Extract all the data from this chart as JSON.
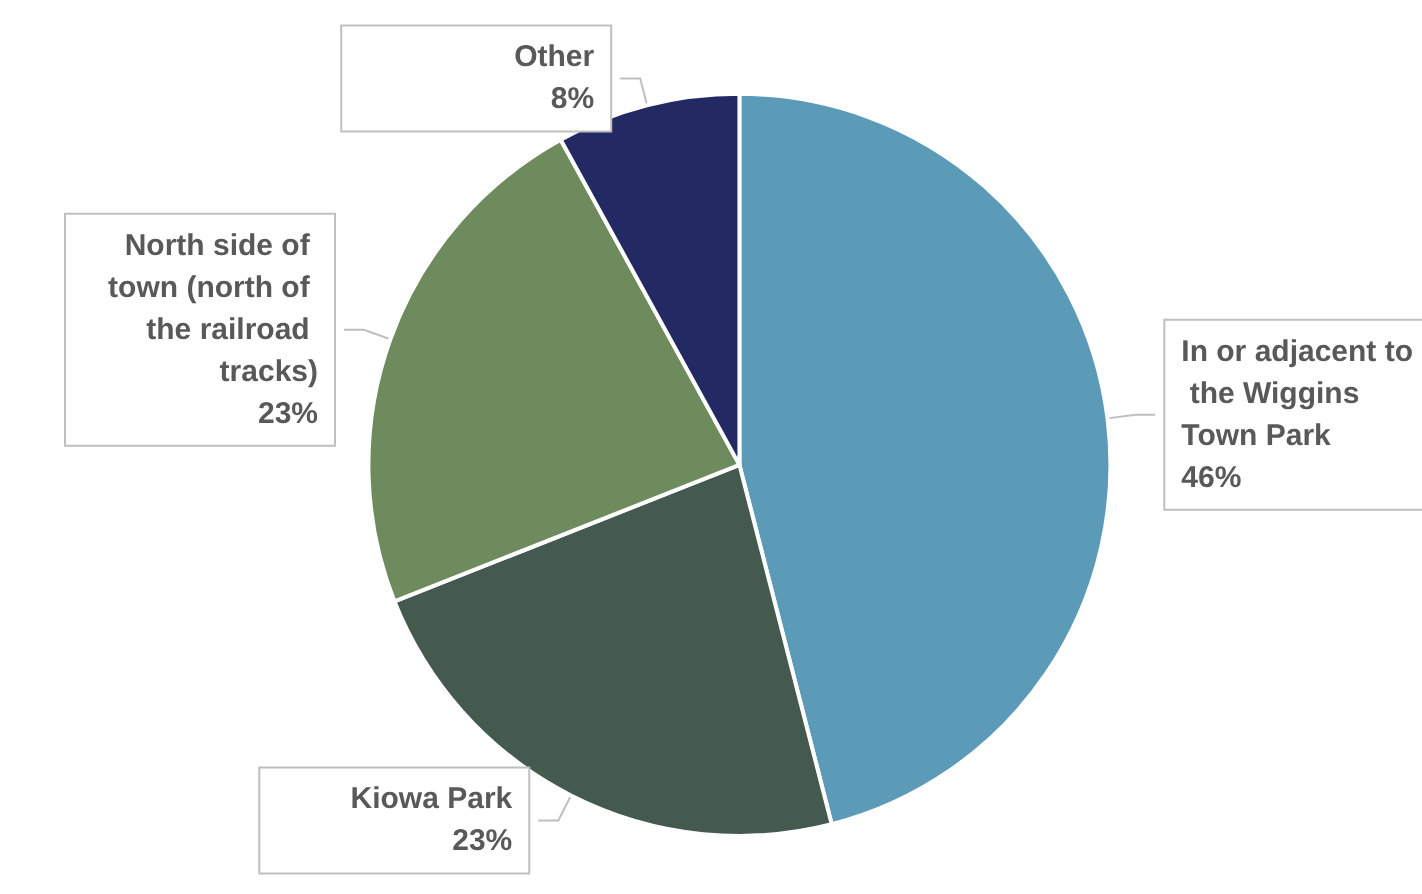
{
  "chart_data": {
    "type": "pie",
    "categories": [
      "In or adjacent to the Wiggins Town Park",
      "Kiowa Park",
      "North side of town (north of the railroad tracks)",
      "Other"
    ],
    "values": [
      46,
      23,
      23,
      8
    ],
    "value_labels": [
      "46%",
      "23%",
      "23%",
      "8%"
    ],
    "colors": [
      "#5b9bb8",
      "#455a4f",
      "#6e8b5e",
      "#232a63"
    ],
    "legend": false
  }
}
